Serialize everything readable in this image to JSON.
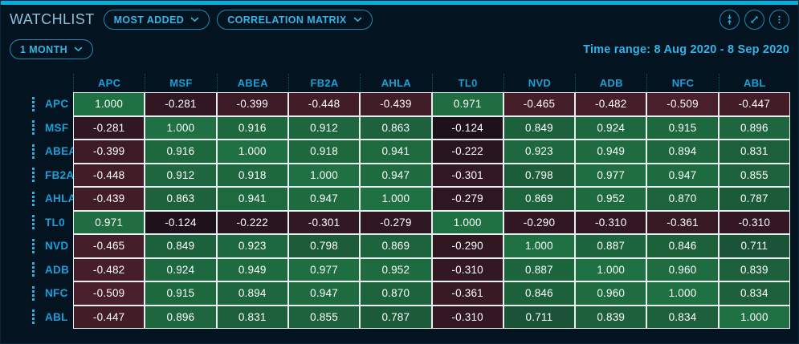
{
  "header": {
    "title": "WATCHLIST",
    "most_added_label": "MOST ADDED",
    "correlation_matrix_label": "CORRELATION MATRIX",
    "action_icons": [
      "collapse-vertical-icon",
      "expand-diagonal-icon",
      "kebab-menu-icon"
    ]
  },
  "toolbar": {
    "period_label": "1 MONTH",
    "time_range": "Time range: 8 Aug 2020 - 8 Sep 2020"
  },
  "chart_data": {
    "type": "heatmap",
    "title": "Correlation matrix",
    "tickers": [
      "APC",
      "MSF",
      "ABEA",
      "FB2A",
      "AHLA",
      "TL0",
      "NVD",
      "ADB",
      "NFC",
      "ABL"
    ],
    "matrix": [
      [
        1.0,
        -0.281,
        -0.399,
        -0.448,
        -0.439,
        0.971,
        -0.465,
        -0.482,
        -0.509,
        -0.447
      ],
      [
        -0.281,
        1.0,
        0.916,
        0.912,
        0.863,
        -0.124,
        0.849,
        0.924,
        0.915,
        0.896
      ],
      [
        -0.399,
        0.916,
        1.0,
        0.918,
        0.941,
        -0.222,
        0.923,
        0.949,
        0.894,
        0.831
      ],
      [
        -0.448,
        0.912,
        0.918,
        1.0,
        0.947,
        -0.301,
        0.798,
        0.977,
        0.947,
        0.855
      ],
      [
        -0.439,
        0.863,
        0.941,
        0.947,
        1.0,
        -0.279,
        0.869,
        0.952,
        0.87,
        0.787
      ],
      [
        0.971,
        -0.124,
        -0.222,
        -0.301,
        -0.279,
        1.0,
        -0.29,
        -0.31,
        -0.361,
        -0.31
      ],
      [
        -0.465,
        0.849,
        0.923,
        0.798,
        0.869,
        -0.29,
        1.0,
        0.887,
        0.846,
        0.711
      ],
      [
        -0.482,
        0.924,
        0.949,
        0.977,
        0.952,
        -0.31,
        0.887,
        1.0,
        0.96,
        0.839
      ],
      [
        -0.509,
        0.915,
        0.894,
        0.947,
        0.87,
        -0.361,
        0.846,
        0.96,
        1.0,
        0.834
      ],
      [
        -0.447,
        0.896,
        0.831,
        0.855,
        0.787,
        -0.31,
        0.711,
        0.839,
        0.834,
        1.0
      ]
    ],
    "value_range": [
      -1,
      1
    ],
    "decimals": 3,
    "colors": {
      "positive_full": "#1f7042",
      "negative_full": "#7e313e",
      "zero": "#110d17",
      "accent": "#00b0de",
      "cell_border": "#e8edef",
      "ticker_text": "#18a0d8"
    }
  }
}
